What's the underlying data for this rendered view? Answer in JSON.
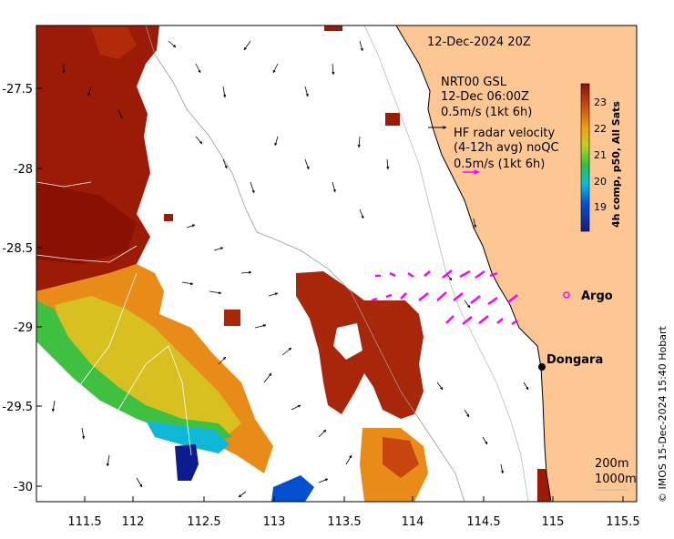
{
  "header": {
    "timestamp": "12-Dec-2024 20Z"
  },
  "legend": {
    "model_line1": "NRT00 GSL",
    "model_line2": "12-Dec 06:00Z",
    "model_scale": "0.5m/s (1kt 6h)",
    "radar_line1": "HF radar velocity",
    "radar_line2": "(4-12h avg) noQC",
    "radar_scale": "0.5m/s (1kt 6h)"
  },
  "colorbar": {
    "title": "4h comp, p50, All Sats",
    "ticks": [
      "23",
      "22",
      "21",
      "20",
      "19"
    ]
  },
  "axes": {
    "x_ticks": [
      "111.5",
      "112",
      "112.5",
      "113",
      "113.5",
      "114",
      "114.5",
      "115",
      "115.5"
    ],
    "y_ticks": [
      "-27.5",
      "-28",
      "-28.5",
      "-29",
      "-29.5",
      "-30"
    ]
  },
  "places": {
    "argo": "Argo",
    "dongara": "Dongara"
  },
  "bathymetry": {
    "line1": "200m",
    "line2": "1000m"
  },
  "credit": "© IMOS 15-Dec-2024 15:40 Hobart",
  "colors": {
    "land": "#fdc794",
    "hf_arrow": "#ff00ff",
    "warm": "#9b1b06",
    "cool": "#0d1c8c"
  }
}
